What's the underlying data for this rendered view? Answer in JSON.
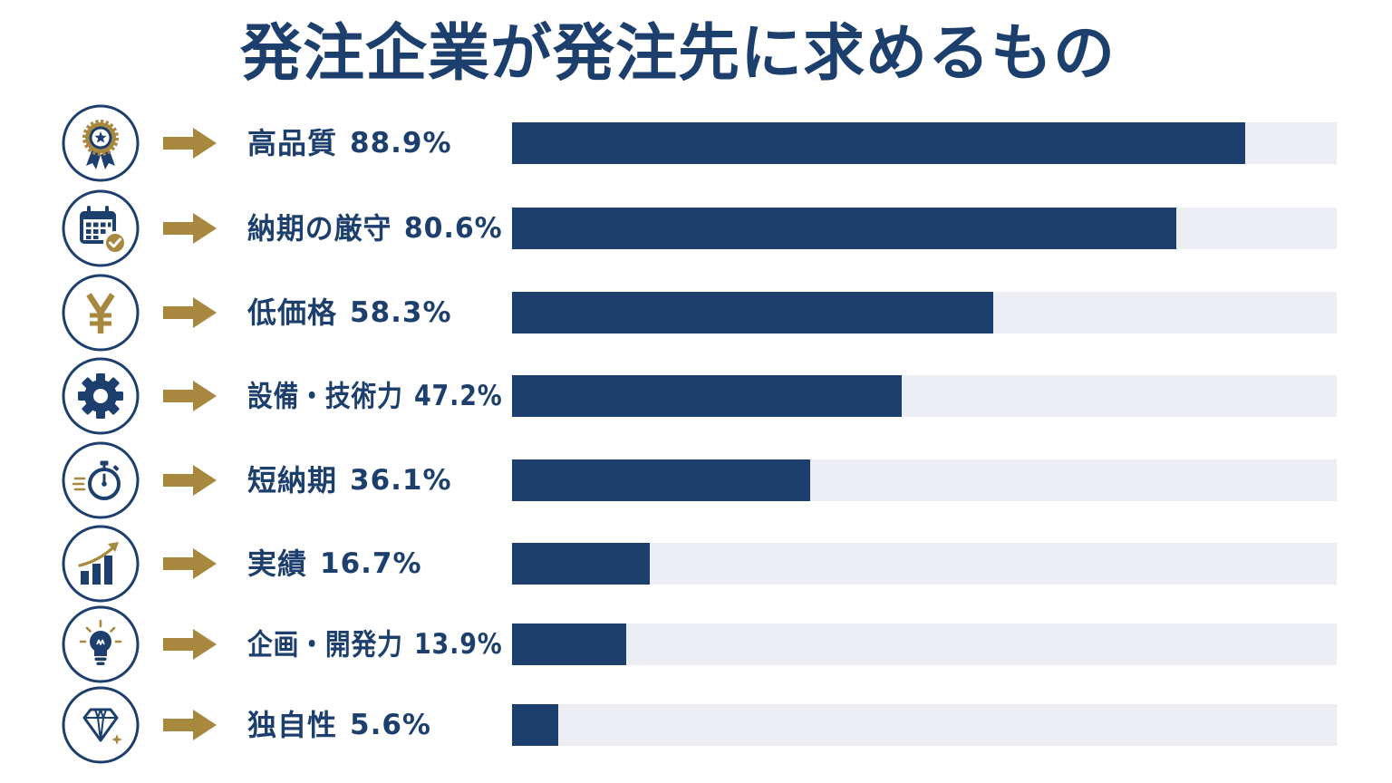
{
  "chart_data": {
    "type": "bar",
    "orientation": "horizontal",
    "title": "発注企業が発注先に求めるもの",
    "categories": [
      "高品質",
      "納期の厳守",
      "低価格",
      "設備・技術力",
      "短納期",
      "実績",
      "企画・開発力",
      "独自性"
    ],
    "values": [
      88.9,
      80.6,
      58.3,
      47.2,
      36.1,
      16.7,
      13.9,
      5.6
    ],
    "unit": "%",
    "xlim": [
      0,
      100
    ],
    "grid": false
  },
  "icons": [
    "medal-icon",
    "calendar-check-icon",
    "yen-icon",
    "gear-icon",
    "stopwatch-icon",
    "growth-chart-icon",
    "lightbulb-icon",
    "diamond-icon"
  ],
  "colors": {
    "navy": "#1c3f6e",
    "gold": "#a8873e",
    "track": "#eceef3",
    "background": "#ffffff"
  }
}
